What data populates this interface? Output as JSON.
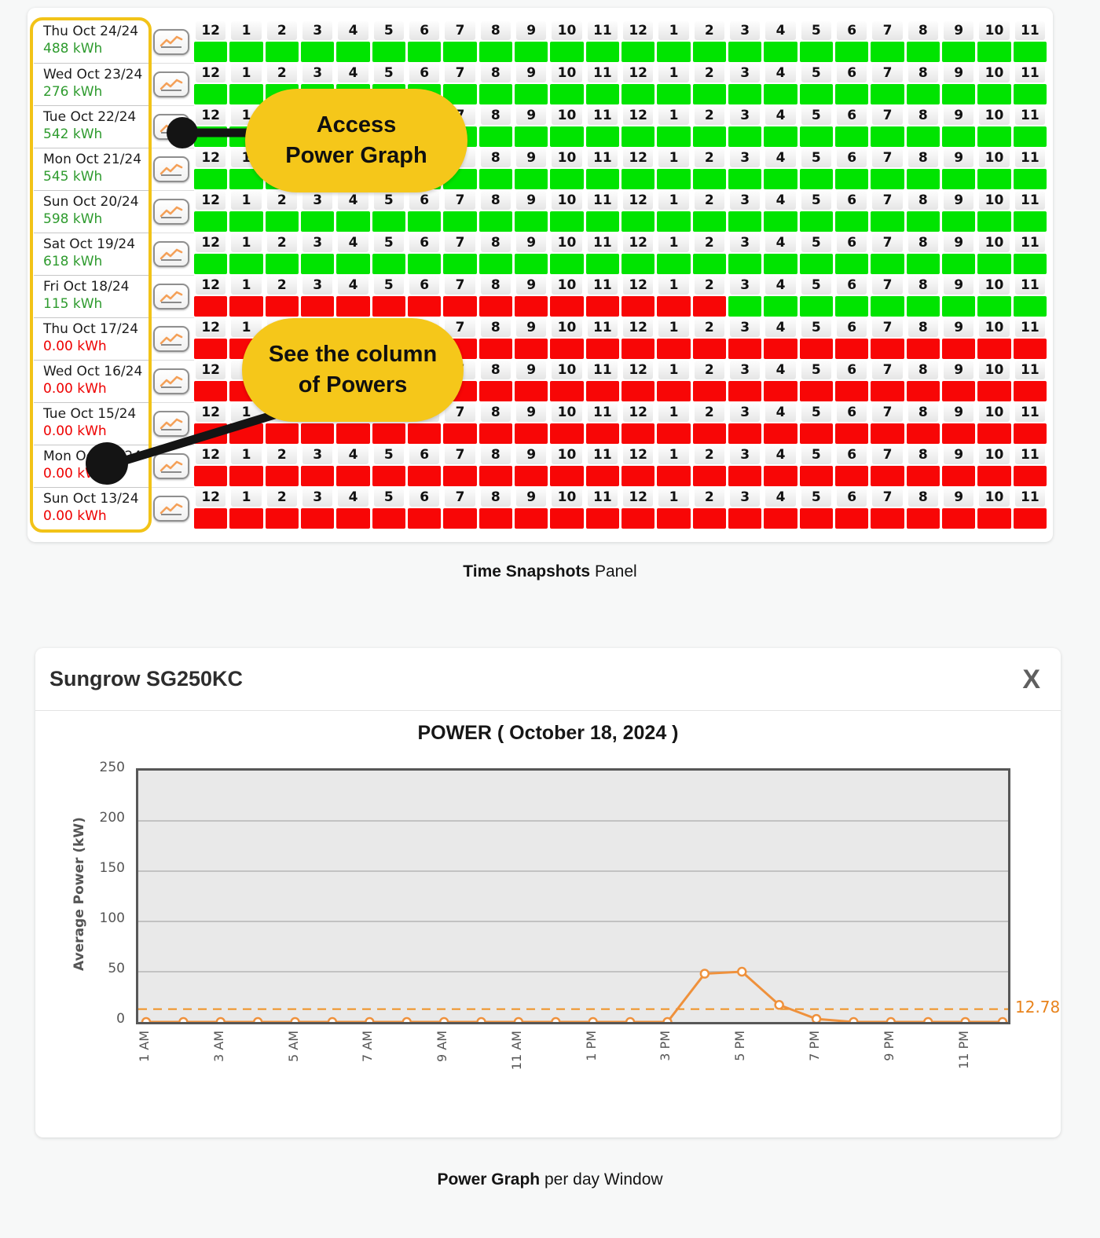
{
  "colors": {
    "cell_green": "#00e400",
    "cell_red": "#f80606",
    "energy_ok": "#2e9b2e",
    "energy_zero": "#ee0000",
    "callout_bg": "#f5c71a",
    "date_outline": "#f2c318",
    "chart_line": "#ef913c",
    "chart_ref": "#f09122",
    "ref_label_color": "#e8831c",
    "connector_black": "#141414"
  },
  "snapshots": {
    "hour_headers": [
      "12",
      "1",
      "2",
      "3",
      "4",
      "5",
      "6",
      "7",
      "8",
      "9",
      "10",
      "11",
      "12",
      "1",
      "2",
      "3",
      "4",
      "5",
      "6",
      "7",
      "8",
      "9",
      "10",
      "11"
    ],
    "rows": [
      {
        "date": "Thu Oct 24/24",
        "energy": "488 kWh",
        "status": "ok",
        "pattern": "gggggggggggggggggggggggg"
      },
      {
        "date": "Wed Oct 23/24",
        "energy": "276 kWh",
        "status": "ok",
        "pattern": "gggggggggggggggggggggggg"
      },
      {
        "date": "Tue Oct 22/24",
        "energy": "542 kWh",
        "status": "ok",
        "pattern": "gggggggggggggggggggggggg"
      },
      {
        "date": "Mon Oct 21/24",
        "energy": "545 kWh",
        "status": "ok",
        "pattern": "gggggggggggggggggggggggg"
      },
      {
        "date": "Sun Oct 20/24",
        "energy": "598 kWh",
        "status": "ok",
        "pattern": "gggggggggggggggggggggggg"
      },
      {
        "date": "Sat Oct 19/24",
        "energy": "618 kWh",
        "status": "ok",
        "pattern": "gggggggggggggggggggggggg"
      },
      {
        "date": "Fri Oct 18/24",
        "energy": "115 kWh",
        "status": "ok",
        "pattern": "rrrrrrrrrrrrrrrggggggggg"
      },
      {
        "date": "Thu Oct 17/24",
        "energy": "0.00 kWh",
        "status": "zero",
        "pattern": "rrrrrrrrrrrrrrrrrrrrrrrr"
      },
      {
        "date": "Wed Oct 16/24",
        "energy": "0.00 kWh",
        "status": "zero",
        "pattern": "rrrrrrrrrrrrrrrrrrrrrrrr"
      },
      {
        "date": "Tue Oct 15/24",
        "energy": "0.00 kWh",
        "status": "zero",
        "pattern": "rrrrrrrrrrrrrrrrrrrrrrrr"
      },
      {
        "date": "Mon Oct 14/24",
        "energy": "0.00 kWh",
        "status": "zero",
        "pattern": "rrrrrrrrrrrrrrrrrrrrrrrr"
      },
      {
        "date": "Sun Oct 13/24",
        "energy": "0.00 kWh",
        "status": "zero",
        "pattern": "rrrrrrrrrrrrrrrrrrrrrrrr"
      }
    ]
  },
  "callouts": [
    {
      "line1": "Access",
      "line2": "Power Graph"
    },
    {
      "line1": "See the column",
      "line2": "of Powers"
    }
  ],
  "captions": {
    "snapshots": {
      "bold": "Time Snapshots",
      "rest": "Panel"
    },
    "power": {
      "bold": "Power Graph",
      "rest": "per day Window"
    }
  },
  "power_window": {
    "title": "Sungrow SG250KC",
    "close_label": "X",
    "chart_data": {
      "type": "line",
      "title": "POWER ( October 18, 2024 )",
      "xlabel": "",
      "ylabel": "Average Power (kW)",
      "ylim": [
        0,
        250
      ],
      "yticks": [
        0,
        50,
        100,
        150,
        200,
        250
      ],
      "x": [
        "1 AM",
        "2 AM",
        "3 AM",
        "4 AM",
        "5 AM",
        "6 AM",
        "7 AM",
        "8 AM",
        "9 AM",
        "10 AM",
        "11 AM",
        "12 PM",
        "1 PM",
        "2 PM",
        "3 PM",
        "4 PM",
        "5 PM",
        "6 PM",
        "7 PM",
        "8 PM",
        "9 PM",
        "10 PM",
        "11 PM",
        "12 AM"
      ],
      "x_tick_labels": [
        "1 AM",
        "3 AM",
        "5 AM",
        "7 AM",
        "9 AM",
        "11 AM",
        "1 PM",
        "3 PM",
        "5 PM",
        "7 PM",
        "9 PM",
        "11 PM"
      ],
      "values": [
        0,
        0,
        0,
        0,
        0,
        0,
        0,
        0,
        0,
        0,
        0,
        0,
        0,
        0,
        0,
        48,
        50,
        17,
        3,
        0,
        0,
        0,
        0,
        0
      ],
      "reference_line": {
        "value": 12.78,
        "label": "12.78"
      },
      "grid": true,
      "legend": null
    }
  }
}
